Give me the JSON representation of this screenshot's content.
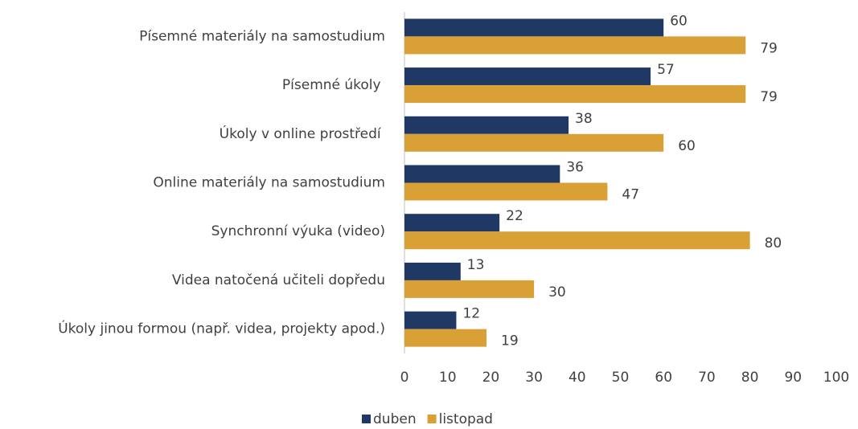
{
  "chart_data": {
    "type": "bar",
    "orientation": "horizontal",
    "categories": [
      "Písemné materiály na samostudium",
      "Písemné úkoly ",
      "Úkoly v online prostředí ",
      "Online materiály na samostudium",
      "Synchronní výuka (video)",
      "Videa natočená učiteli dopředu",
      "Úkoly jinou formou (např. videa, projekty apod.)"
    ],
    "series": [
      {
        "name": "duben",
        "color": "#203864",
        "values": [
          60,
          57,
          38,
          36,
          22,
          13,
          12
        ]
      },
      {
        "name": "listopad",
        "color": "#d9a036",
        "values": [
          79,
          79,
          60,
          47,
          80,
          30,
          19
        ]
      }
    ],
    "xlim": [
      0,
      100
    ],
    "xticks": [
      0,
      10,
      20,
      30,
      40,
      50,
      60,
      70,
      80,
      90,
      100
    ],
    "legend": "bottom"
  }
}
